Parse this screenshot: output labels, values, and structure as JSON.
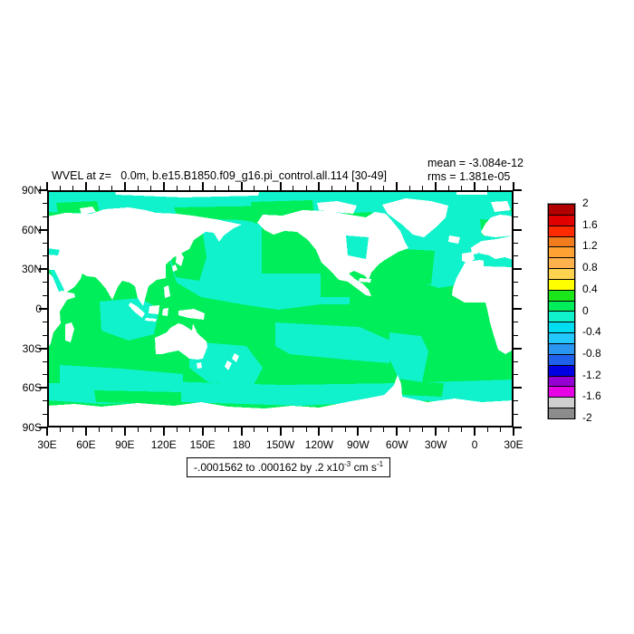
{
  "title": "WVEL at z=   0.0m, b.e15.B1850.f09_g16.pi_control.all.114 [30-49]",
  "stats": {
    "mean_label": "mean = -3.084e-12",
    "rms_label": "rms = 1.381e-05"
  },
  "y_axis": {
    "labels": [
      "90N",
      "60N",
      "30N",
      "0",
      "30S",
      "60S",
      "90S"
    ]
  },
  "x_axis": {
    "labels": [
      "30E",
      "60E",
      "90E",
      "120E",
      "150E",
      "180",
      "150W",
      "120W",
      "90W",
      "60W",
      "30W",
      "0",
      "30E"
    ]
  },
  "caption": {
    "part1": "-.0001562 to .000162 by .2 x10",
    "sup1": "-3",
    "part2": " cm s",
    "sup2": "-1"
  },
  "colorbar": {
    "tick_labels": [
      "2",
      "1.6",
      "1.2",
      "0.8",
      "0.4",
      "0",
      "-0.4",
      "-0.8",
      "-1.2",
      "-1.6",
      "-2"
    ],
    "colors": [
      "#B20000",
      "#E10000",
      "#FF2A00",
      "#F07C1E",
      "#FFA133",
      "#FFB14D",
      "#FFD24F",
      "#FFFF00",
      "#1AE61A",
      "#00EE5A",
      "#0FF2CB",
      "#00DCF0",
      "#22C8FF",
      "#2B96F0",
      "#2061EC",
      "#0000E0",
      "#9400D3",
      "#E600E6",
      "#CFCFCF",
      "#8C8C8C"
    ]
  },
  "map": {
    "upwelling_color": "#00EE5A",
    "downwelling_color": "#0FF2CB",
    "land_color": "#FFFFFF",
    "frame_color": "#000000"
  },
  "chart_data": {
    "type": "heatmap",
    "subtype": "filled-contour global map (equirectangular, longitudes 30E eastward to 30E)",
    "title": "WVEL at z=   0.0m, b.e15.B1850.f09_g16.pi_control.all.114 [30-49]",
    "variable": "WVEL",
    "units": "cm s^-1",
    "stats": {
      "mean": "-3.084e-12",
      "rms": "1.381e-05"
    },
    "data_min": "-.0001562",
    "data_max": ".000162",
    "contour_interval": ".2 x10^-3 cm s^-1",
    "x_axis": {
      "kind": "longitude",
      "ticks": [
        "30E",
        "60E",
        "90E",
        "120E",
        "150E",
        "180",
        "150W",
        "120W",
        "90W",
        "60W",
        "30W",
        "0",
        "30E"
      ],
      "major_interval_deg": 30,
      "minor_interval_deg": 10
    },
    "y_axis": {
      "kind": "latitude",
      "ticks": [
        "90N",
        "60N",
        "30N",
        "0",
        "30S",
        "60S",
        "90S"
      ],
      "major_interval_deg": 30,
      "minor_interval_deg": 10
    },
    "colorbar": {
      "position": "right",
      "n_bins": 20,
      "bin_width": 0.2,
      "range": [
        -2,
        2
      ],
      "tick_labels": [
        "2",
        "1.6",
        "1.2",
        "0.8",
        "0.4",
        "0",
        "-0.4",
        "-0.8",
        "-1.2",
        "-1.6",
        "-2"
      ]
    },
    "visible_bins": [
      {
        "range": "0 to 0.2",
        "color": "#00EE5A",
        "coverage": "majority of ocean (Indian Ocean, eastern/tropical Pacific, tropical & SE Atlantic, mid-latitude southern oceans)"
      },
      {
        "range": "-0.2 to 0",
        "color": "#0FF2CB",
        "coverage": "Arctic, NW/central North Pacific, North Atlantic, SE Pacific band, circumpolar Southern Ocean band, seas around Indonesia"
      }
    ],
    "land_masked_white": true
  }
}
